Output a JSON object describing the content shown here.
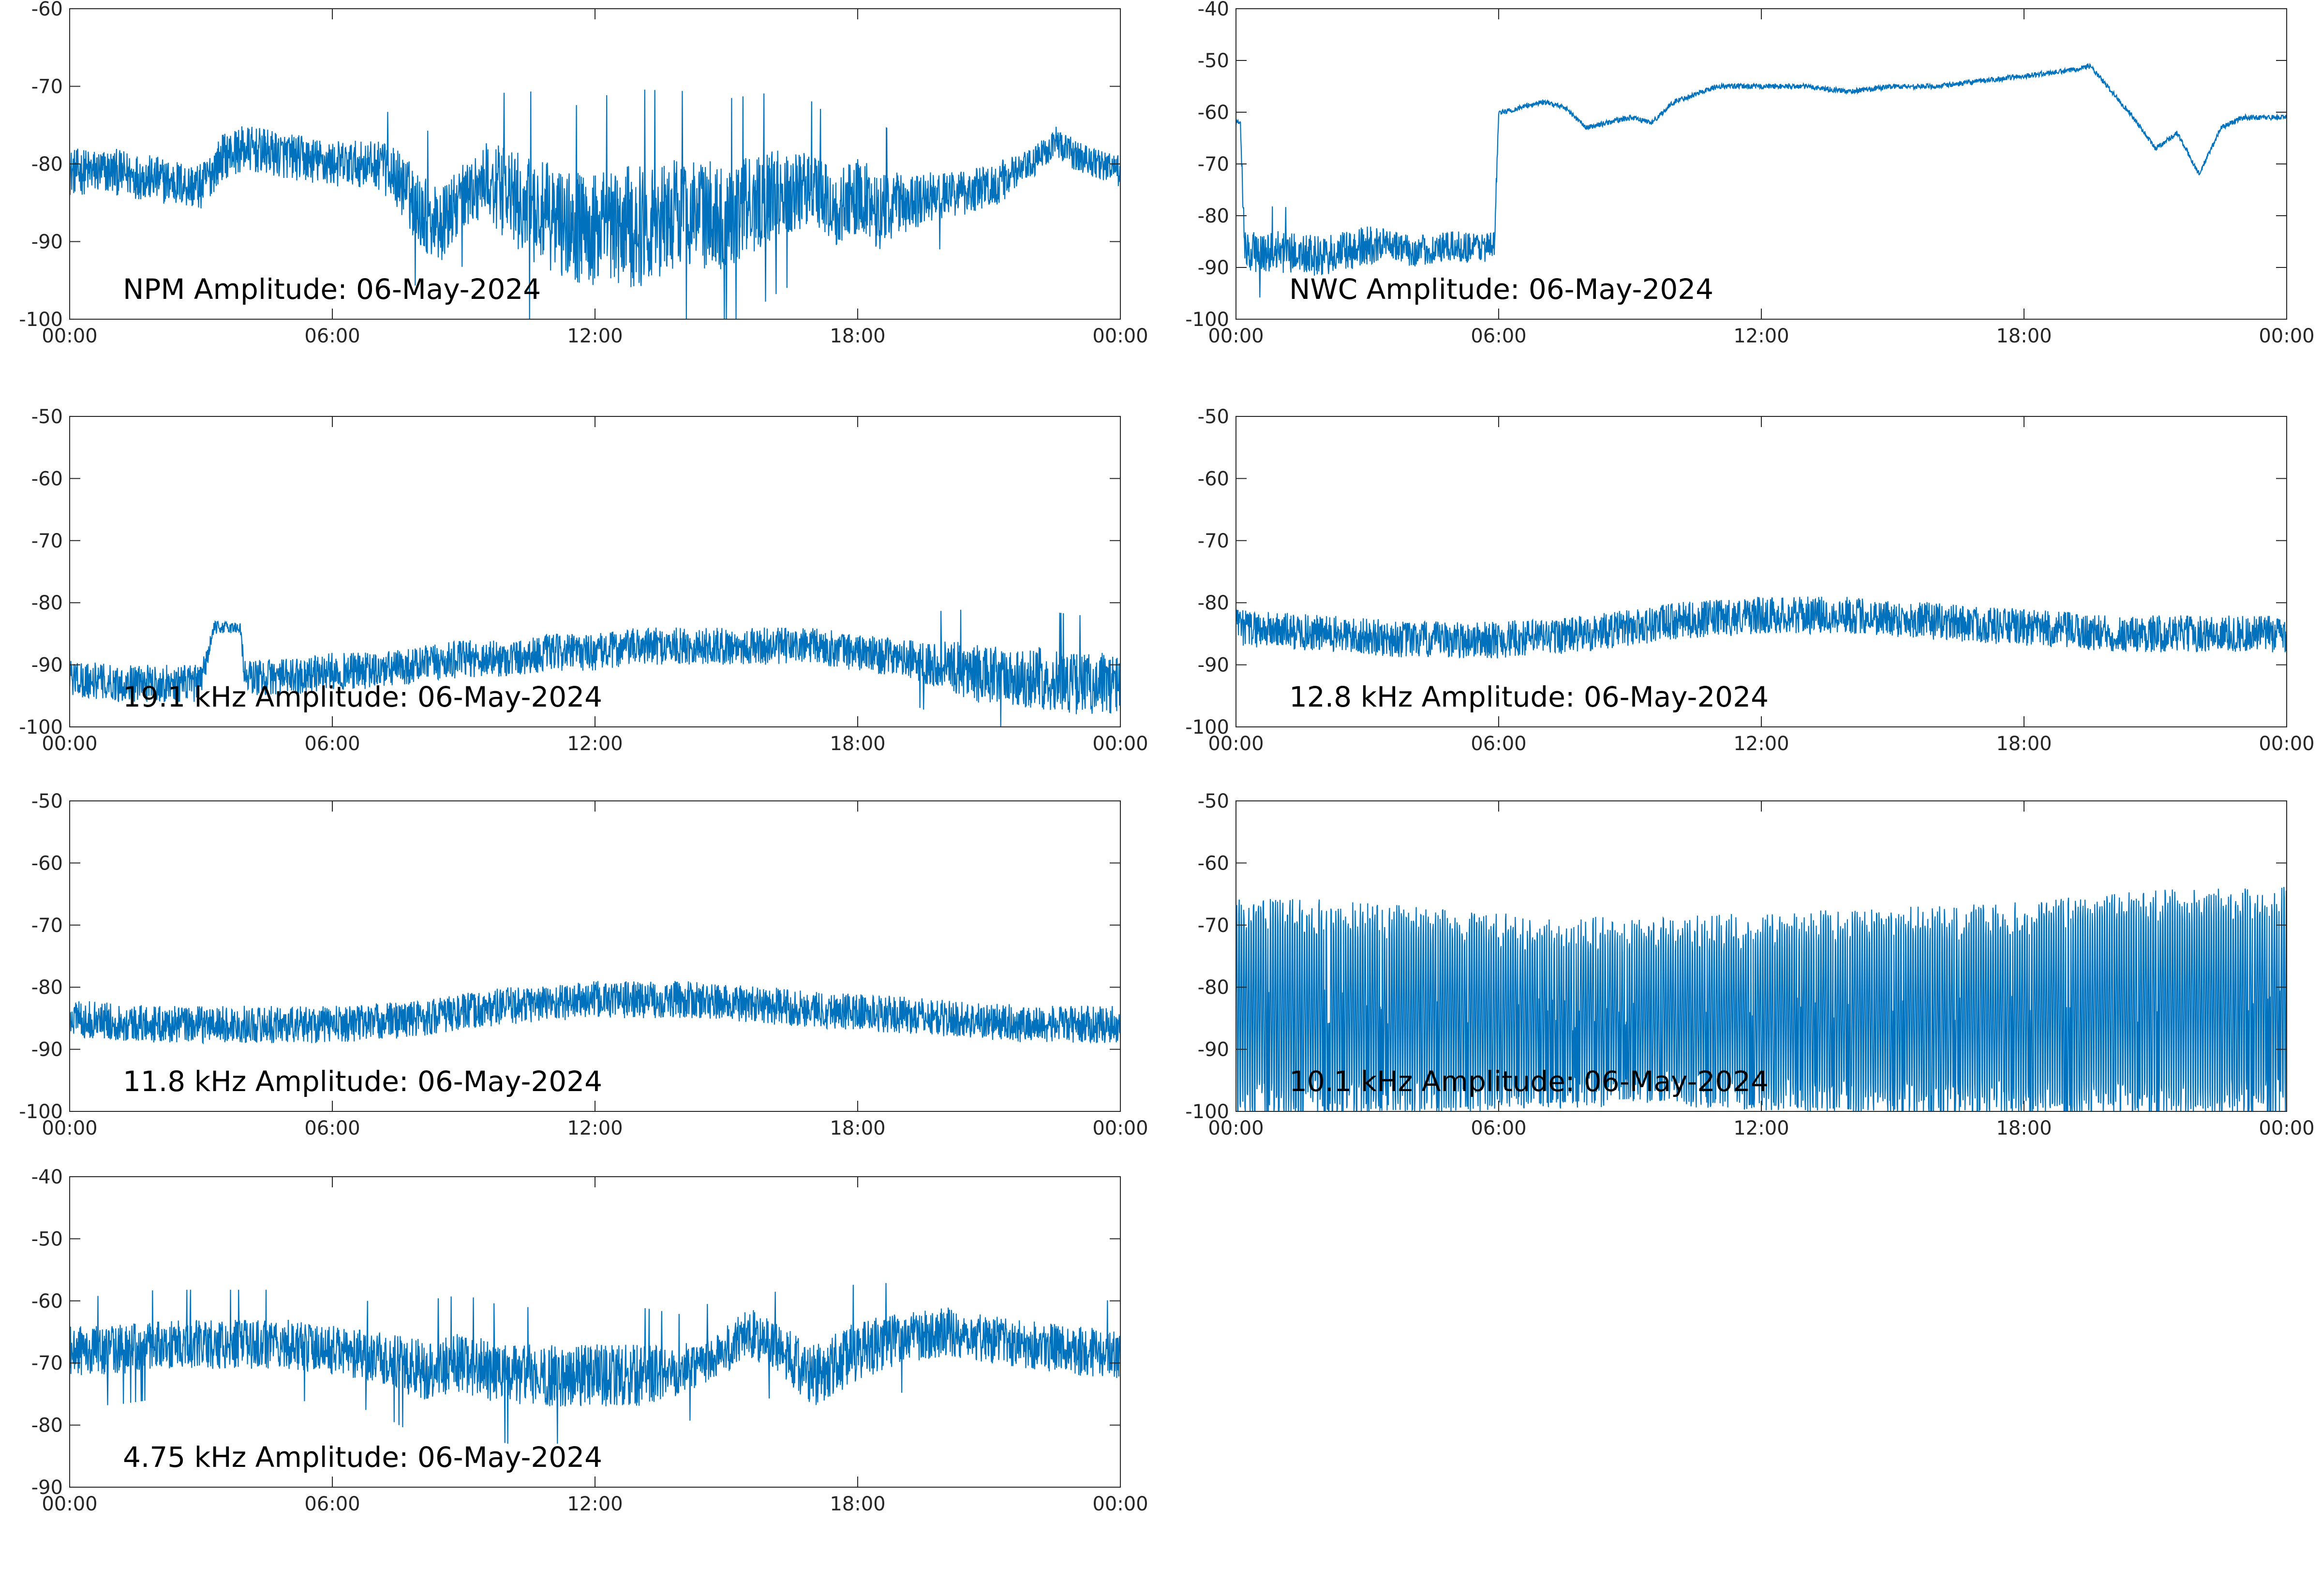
{
  "colors": {
    "series": "#0072BD",
    "axis": "#262626",
    "background": "#ffffff",
    "title": "#000000"
  },
  "chart_data": [
    {
      "type": "line",
      "title": "NPM Amplitude: 06-May-2024",
      "xlabel": "",
      "ylabel": "",
      "grid": false,
      "xlim": [
        "00:00",
        "24:00"
      ],
      "x_ticks": [
        "00:00",
        "06:00",
        "12:00",
        "18:00",
        "00:00"
      ],
      "ylim": [
        -100,
        -60
      ],
      "y_ticks": [
        "-60",
        "-70",
        "-80",
        "-90",
        "-100"
      ],
      "series": [
        {
          "x_hours": [
            0,
            1,
            2,
            3,
            3.5,
            4,
            5,
            6,
            7,
            7.5,
            8,
            8.5,
            9,
            9.5,
            10,
            10.5,
            11,
            11.5,
            12,
            13,
            14,
            15,
            16,
            17,
            17.5,
            18,
            18.5,
            19,
            20,
            21,
            22,
            22.5,
            23,
            24
          ],
          "y_mean": [
            -81,
            -81,
            -82,
            -83,
            -79,
            -78,
            -79,
            -80,
            -80,
            -82,
            -86,
            -88,
            -84,
            -82,
            -84,
            -86,
            -87,
            -88,
            -89,
            -88,
            -86,
            -87,
            -84,
            -83,
            -86,
            -84,
            -86,
            -85,
            -84,
            -83,
            -80,
            -77,
            -79,
            -81
          ],
          "spread": [
            3,
            3,
            3,
            3,
            3,
            3,
            3,
            3,
            3,
            4,
            5,
            5,
            4,
            5,
            6,
            7,
            7,
            7,
            8,
            8,
            7,
            7,
            6,
            5,
            5,
            5,
            5,
            4,
            3,
            3,
            2,
            2,
            2,
            2
          ]
        }
      ]
    },
    {
      "type": "line",
      "title": "NWC Amplitude: 06-May-2024",
      "xlabel": "",
      "ylabel": "",
      "grid": false,
      "xlim": [
        "00:00",
        "24:00"
      ],
      "x_ticks": [
        "00:00",
        "06:00",
        "12:00",
        "18:00",
        "00:00"
      ],
      "ylim": [
        -100,
        -40
      ],
      "y_ticks": [
        "-40",
        "-50",
        "-60",
        "-70",
        "-80",
        "-90",
        "-100"
      ],
      "series": [
        {
          "x_hours": [
            0,
            0.1,
            0.2,
            1,
            2,
            3,
            3.5,
            4,
            5,
            5.9,
            6,
            6.1,
            7,
            7.5,
            8,
            9,
            9.5,
            10,
            11,
            12,
            13,
            14,
            15,
            16,
            17,
            18,
            19,
            19.5,
            20,
            20.5,
            21,
            21.5,
            22,
            22.5,
            23,
            24
          ],
          "y_mean": [
            -62,
            -62,
            -87,
            -87,
            -88,
            -86,
            -85,
            -87,
            -86,
            -86,
            -60,
            -60,
            -58,
            -59,
            -63,
            -61,
            -62,
            -58,
            -55,
            -55,
            -55,
            -56,
            -55,
            -55,
            -54,
            -53,
            -52,
            -51,
            -56,
            -61,
            -67,
            -64,
            -72,
            -63,
            -61,
            -61
          ],
          "spread": [
            0.5,
            0.5,
            4,
            4,
            4,
            4,
            3,
            3,
            3,
            3,
            0.5,
            0.5,
            0.5,
            0.5,
            0.5,
            0.5,
            0.5,
            0.5,
            0.5,
            0.5,
            0.5,
            0.5,
            0.5,
            0.5,
            0.5,
            0.5,
            0.5,
            0.5,
            0.5,
            0.5,
            0.5,
            0.5,
            0.5,
            0.5,
            0.5,
            0.5
          ]
        }
      ]
    },
    {
      "type": "line",
      "title": "19.1 kHz Amplitude: 06-May-2024",
      "xlabel": "",
      "ylabel": "",
      "grid": false,
      "xlim": [
        "00:00",
        "24:00"
      ],
      "x_ticks": [
        "00:00",
        "06:00",
        "12:00",
        "18:00",
        "00:00"
      ],
      "ylim": [
        -100,
        -50
      ],
      "y_ticks": [
        "-50",
        "-60",
        "-70",
        "-80",
        "-90",
        "-100"
      ],
      "series": [
        {
          "x_hours": [
            0,
            1,
            2,
            3,
            3.3,
            3.9,
            4,
            5,
            6,
            7,
            8,
            9,
            10,
            11,
            12,
            13,
            14,
            15,
            16,
            17,
            18,
            19,
            20,
            21,
            22,
            23,
            24
          ],
          "y_mean": [
            -92,
            -93,
            -93,
            -93,
            -84,
            -84,
            -92,
            -92,
            -91,
            -91,
            -90,
            -89,
            -89,
            -88,
            -88,
            -87,
            -87,
            -87,
            -87,
            -87,
            -88,
            -89,
            -90,
            -92,
            -92,
            -93,
            -93
          ],
          "spread": [
            3,
            3,
            3,
            3,
            1,
            1,
            3,
            3,
            3,
            3,
            3,
            3,
            3,
            3,
            3,
            3,
            3,
            3,
            3,
            3,
            3,
            3,
            4,
            5,
            5,
            5,
            5
          ]
        }
      ]
    },
    {
      "type": "line",
      "title": "12.8 kHz Amplitude: 06-May-2024",
      "xlabel": "",
      "ylabel": "",
      "grid": false,
      "xlim": [
        "00:00",
        "24:00"
      ],
      "x_ticks": [
        "00:00",
        "06:00",
        "12:00",
        "18:00",
        "00:00"
      ],
      "ylim": [
        -100,
        -50
      ],
      "y_ticks": [
        "-50",
        "-60",
        "-70",
        "-80",
        "-90",
        "-100"
      ],
      "series": [
        {
          "x_hours": [
            0,
            2,
            4,
            6,
            8,
            9,
            10,
            12,
            14,
            16,
            18,
            20,
            22,
            24
          ],
          "y_mean": [
            -84,
            -85,
            -86,
            -86,
            -85,
            -84,
            -83,
            -82,
            -82,
            -83,
            -84,
            -85,
            -85,
            -85
          ],
          "spread": [
            3,
            3,
            3,
            3,
            3,
            3,
            3,
            3,
            3,
            3,
            3,
            3,
            3,
            3
          ]
        }
      ]
    },
    {
      "type": "line",
      "title": "11.8 kHz Amplitude: 06-May-2024",
      "xlabel": "",
      "ylabel": "",
      "grid": false,
      "xlim": [
        "00:00",
        "24:00"
      ],
      "x_ticks": [
        "00:00",
        "06:00",
        "12:00",
        "18:00",
        "00:00"
      ],
      "ylim": [
        -100,
        -50
      ],
      "y_ticks": [
        "-50",
        "-60",
        "-70",
        "-80",
        "-90",
        "-100"
      ],
      "series": [
        {
          "x_hours": [
            0,
            2,
            4,
            6,
            8,
            9,
            10,
            12,
            14,
            16,
            18,
            20,
            22,
            24
          ],
          "y_mean": [
            -85,
            -86,
            -86,
            -86,
            -85,
            -84,
            -83,
            -82,
            -82,
            -83,
            -84,
            -85,
            -86,
            -86
          ],
          "spread": [
            3,
            3,
            3,
            3,
            3,
            3,
            3,
            3,
            3,
            3,
            3,
            3,
            3,
            3
          ]
        }
      ]
    },
    {
      "type": "line",
      "title": "10.1 kHz Amplitude: 06-May-2024",
      "xlabel": "",
      "ylabel": "",
      "grid": false,
      "xlim": [
        "00:00",
        "24:00"
      ],
      "x_ticks": [
        "00:00",
        "06:00",
        "12:00",
        "18:00",
        "00:00"
      ],
      "ylim": [
        -100,
        -50
      ],
      "y_ticks": [
        "-50",
        "-60",
        "-70",
        "-80",
        "-90",
        "-100"
      ],
      "series": [
        {
          "x_hours": [
            0,
            3,
            6,
            9,
            12,
            15,
            18,
            21,
            24
          ],
          "y_upper": [
            -66,
            -67,
            -69,
            -70,
            -69,
            -68,
            -67,
            -65,
            -64
          ],
          "y_lower": [
            -100,
            -100,
            -99,
            -98,
            -99,
            -100,
            -100,
            -100,
            -100
          ]
        }
      ]
    },
    {
      "type": "line",
      "title": "4.75 kHz Amplitude: 06-May-2024",
      "xlabel": "",
      "ylabel": "",
      "grid": false,
      "xlim": [
        "00:00",
        "24:00"
      ],
      "x_ticks": [
        "00:00",
        "06:00",
        "12:00",
        "18:00",
        "00:00"
      ],
      "ylim": [
        -90,
        -40
      ],
      "y_ticks": [
        "-40",
        "-50",
        "-60",
        "-70",
        "-80",
        "-90"
      ],
      "series": [
        {
          "x_hours": [
            0,
            1,
            2,
            3,
            4,
            5,
            6,
            7,
            8,
            9,
            10,
            11,
            12,
            13,
            14,
            15,
            15.5,
            16,
            17,
            18,
            19,
            20,
            21,
            22,
            23,
            24
          ],
          "y_mean": [
            -68,
            -68,
            -67,
            -67,
            -67,
            -67,
            -68,
            -69,
            -71,
            -70,
            -72,
            -72,
            -72,
            -72,
            -71,
            -68,
            -65,
            -67,
            -72,
            -68,
            -66,
            -65,
            -66,
            -67,
            -68,
            -69
          ],
          "spread": [
            4,
            4,
            4,
            4,
            4,
            4,
            4,
            4,
            5,
            5,
            5,
            5,
            5,
            5,
            4,
            4,
            4,
            4,
            5,
            5,
            4,
            4,
            4,
            4,
            4,
            4
          ]
        }
      ]
    }
  ]
}
